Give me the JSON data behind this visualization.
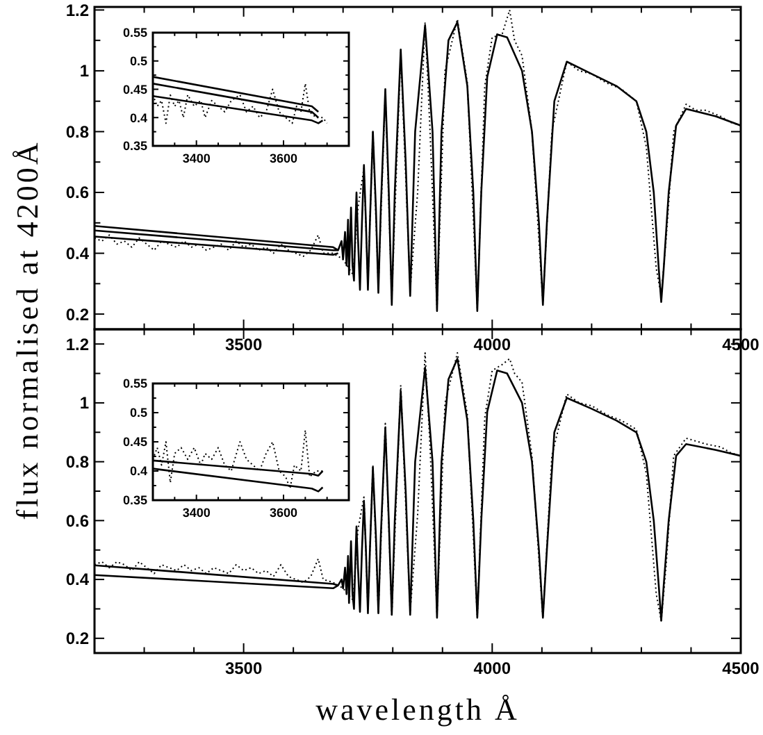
{
  "chart_data": [
    {
      "type": "line",
      "ylabel": "flux normalised at 4200Å",
      "xlim": [
        3200,
        4500
      ],
      "ylim": [
        0.15,
        1.21
      ],
      "xticks": [
        {
          "value": 3300,
          "label": null
        },
        {
          "value": 3400,
          "label": null
        },
        3500,
        {
          "value": 3600,
          "label": null
        },
        {
          "value": 3700,
          "label": null
        },
        {
          "value": 3800,
          "label": null
        },
        {
          "value": 3900,
          "label": null
        },
        4000,
        {
          "value": 4100,
          "label": null
        },
        {
          "value": 4200,
          "label": null
        },
        {
          "value": 4300,
          "label": null
        },
        {
          "value": 4400,
          "label": null
        },
        4500
      ],
      "yticks": [
        0.2,
        {
          "value": 0.3,
          "label": null
        },
        0.4,
        {
          "value": 0.5,
          "label": null
        },
        0.6,
        {
          "value": 0.7,
          "label": null
        },
        0.8,
        {
          "value": 0.9,
          "label": null
        },
        1,
        {
          "value": 1.1,
          "label": null
        },
        1.2
      ],
      "series": [
        {
          "color": "#000000",
          "line_style": "dotted",
          "x": [
            3200,
            3215,
            3230,
            3245,
            3260,
            3275,
            3290,
            3305,
            3320,
            3335,
            3350,
            3365,
            3380,
            3395,
            3410,
            3425,
            3440,
            3455,
            3470,
            3485,
            3500,
            3515,
            3530,
            3545,
            3560,
            3575,
            3590,
            3605,
            3620,
            3635,
            3650,
            3660,
            3680,
            3700,
            3720,
            3730,
            3742,
            3750,
            3760,
            3771,
            3785,
            3798,
            3816,
            3835,
            3850,
            3865,
            3875,
            3889,
            3905,
            3930,
            3950,
            3970,
            3985,
            4000,
            4020,
            4035,
            4045,
            4060,
            4080,
            4102,
            4120,
            4150,
            4175,
            4200,
            4230,
            4260,
            4290,
            4310,
            4330,
            4340,
            4350,
            4365,
            4390,
            4410,
            4430,
            4460,
            4480,
            4500
          ],
          "values": [
            0.45,
            0.44,
            0.46,
            0.43,
            0.44,
            0.42,
            0.45,
            0.43,
            0.41,
            0.44,
            0.43,
            0.42,
            0.44,
            0.42,
            0.43,
            0.41,
            0.42,
            0.43,
            0.41,
            0.44,
            0.42,
            0.43,
            0.41,
            0.42,
            0.4,
            0.43,
            0.41,
            0.4,
            0.39,
            0.41,
            0.46,
            0.4,
            0.4,
            0.38,
            0.33,
            0.55,
            0.68,
            0.3,
            0.8,
            0.29,
            0.93,
            0.25,
            1.06,
            0.28,
            0.6,
            1.16,
            0.8,
            0.22,
            1.0,
            1.17,
            0.96,
            0.22,
            0.95,
            1.11,
            1.12,
            1.2,
            1.1,
            1.05,
            0.8,
            0.24,
            0.8,
            1.03,
            1.0,
            0.99,
            0.96,
            0.94,
            0.9,
            0.75,
            0.35,
            0.26,
            0.45,
            0.8,
            0.89,
            0.87,
            0.87,
            0.85,
            0.83,
            0.82
          ]
        },
        {
          "color": "#000000",
          "line_style": "solid",
          "x": [
            3200,
            3680,
            3690,
            3697,
            3700,
            3704,
            3707,
            3710,
            3712,
            3716,
            3719,
            3722,
            3725,
            3727,
            3730,
            3734,
            3738,
            3742,
            3746,
            3750,
            3754,
            3760,
            3766,
            3771,
            3776,
            3785,
            3792,
            3798,
            3804,
            3816,
            3826,
            3835,
            3845,
            3865,
            3880,
            3889,
            3898,
            3912,
            3930,
            3950,
            3962,
            3970,
            3978,
            3990,
            4010,
            4030,
            4060,
            4080,
            4094,
            4102,
            4110,
            4125,
            4150,
            4200,
            4250,
            4290,
            4310,
            4325,
            4335,
            4340,
            4345,
            4355,
            4370,
            4390,
            4450,
            4500
          ],
          "values": [
            0.49,
            0.42,
            0.41,
            0.44,
            0.38,
            0.47,
            0.36,
            0.51,
            0.33,
            0.55,
            0.36,
            0.31,
            0.5,
            0.6,
            0.45,
            0.28,
            0.5,
            0.69,
            0.5,
            0.28,
            0.5,
            0.8,
            0.55,
            0.27,
            0.55,
            0.94,
            0.6,
            0.23,
            0.6,
            1.07,
            0.7,
            0.26,
            0.8,
            1.15,
            0.8,
            0.21,
            0.8,
            1.1,
            1.16,
            0.95,
            0.6,
            0.21,
            0.6,
            0.98,
            1.12,
            1.11,
            1.0,
            0.8,
            0.5,
            0.23,
            0.5,
            0.9,
            1.03,
            0.99,
            0.95,
            0.9,
            0.8,
            0.6,
            0.35,
            0.24,
            0.35,
            0.6,
            0.82,
            0.875,
            0.85,
            0.82
          ]
        },
        {
          "color": "#000000",
          "line_style": "solid",
          "x": [
            3200,
            3680,
            3690
          ],
          "values": [
            0.475,
            0.41,
            0.41
          ]
        },
        {
          "color": "#000000",
          "line_style": "solid",
          "x": [
            3200,
            3680,
            3690
          ],
          "values": [
            0.455,
            0.395,
            0.4
          ]
        }
      ]
    },
    {
      "type": "line",
      "xlim": [
        3300,
        3750
      ],
      "ylim": [
        0.35,
        0.55
      ],
      "xticks": [
        {
          "value": 3350,
          "label": null
        },
        3400,
        {
          "value": 3450,
          "label": null
        },
        {
          "value": 3500,
          "label": null
        },
        {
          "value": 3550,
          "label": null
        },
        3600,
        {
          "value": 3650,
          "label": null
        },
        {
          "value": 3700,
          "label": null
        }
      ],
      "yticks": [
        0.35,
        {
          "value": 0.375,
          "label": null
        },
        0.4,
        {
          "value": 0.425,
          "label": null
        },
        0.45,
        {
          "value": 0.475,
          "label": null
        },
        0.5,
        {
          "value": 0.525,
          "label": null
        },
        0.55
      ],
      "series": [
        {
          "color": "#000000",
          "line_style": "dotted",
          "x": [
            3300,
            3310,
            3320,
            3330,
            3340,
            3350,
            3360,
            3370,
            3380,
            3395,
            3410,
            3420,
            3435,
            3450,
            3465,
            3480,
            3500,
            3515,
            3530,
            3545,
            3560,
            3575,
            3590,
            3605,
            3620,
            3630,
            3640,
            3650,
            3660,
            3675,
            3690,
            3700
          ],
          "values": [
            0.44,
            0.42,
            0.43,
            0.39,
            0.44,
            0.42,
            0.43,
            0.4,
            0.44,
            0.42,
            0.43,
            0.4,
            0.43,
            0.42,
            0.41,
            0.43,
            0.44,
            0.41,
            0.42,
            0.4,
            0.41,
            0.45,
            0.41,
            0.4,
            0.39,
            0.42,
            0.41,
            0.46,
            0.41,
            0.4,
            0.4,
            0.39
          ]
        },
        {
          "color": "#000000",
          "line_style": "solid",
          "x": [
            3300,
            3665,
            3680
          ],
          "values": [
            0.472,
            0.42,
            0.41
          ]
        },
        {
          "color": "#000000",
          "line_style": "solid",
          "x": [
            3300,
            3665,
            3680
          ],
          "values": [
            0.46,
            0.41,
            0.4
          ]
        },
        {
          "color": "#000000",
          "line_style": "solid",
          "x": [
            3300,
            3665,
            3680,
            3690
          ],
          "values": [
            0.438,
            0.395,
            0.39,
            0.395
          ]
        }
      ]
    },
    {
      "type": "line",
      "xlabel": "wavelength Å",
      "xlim": [
        3200,
        4500
      ],
      "ylim": [
        0.15,
        1.25
      ],
      "xticks": [
        {
          "value": 3300,
          "label": null
        },
        {
          "value": 3400,
          "label": null
        },
        3500,
        {
          "value": 3600,
          "label": null
        },
        {
          "value": 3700,
          "label": null
        },
        {
          "value": 3800,
          "label": null
        },
        {
          "value": 3900,
          "label": null
        },
        4000,
        {
          "value": 4100,
          "label": null
        },
        {
          "value": 4200,
          "label": null
        },
        {
          "value": 4300,
          "label": null
        },
        {
          "value": 4400,
          "label": null
        },
        4500
      ],
      "yticks": [
        0.2,
        {
          "value": 0.3,
          "label": null
        },
        0.4,
        {
          "value": 0.5,
          "label": null
        },
        0.6,
        {
          "value": 0.7,
          "label": null
        },
        0.8,
        {
          "value": 0.9,
          "label": null
        },
        1,
        {
          "value": 1.1,
          "label": null
        },
        1.2
      ],
      "series": [
        {
          "color": "#000000",
          "line_style": "dotted",
          "x": [
            3200,
            3215,
            3230,
            3245,
            3260,
            3275,
            3290,
            3305,
            3320,
            3335,
            3350,
            3365,
            3380,
            3395,
            3410,
            3425,
            3440,
            3455,
            3470,
            3485,
            3500,
            3515,
            3530,
            3545,
            3560,
            3575,
            3590,
            3605,
            3620,
            3635,
            3650,
            3660,
            3680,
            3700,
            3720,
            3730,
            3742,
            3750,
            3760,
            3771,
            3785,
            3798,
            3816,
            3835,
            3850,
            3865,
            3875,
            3889,
            3905,
            3930,
            3950,
            3970,
            3985,
            4000,
            4020,
            4035,
            4045,
            4060,
            4080,
            4102,
            4120,
            4150,
            4175,
            4200,
            4230,
            4260,
            4290,
            4310,
            4330,
            4340,
            4350,
            4365,
            4390,
            4410,
            4430,
            4460,
            4480,
            4500
          ],
          "values": [
            0.45,
            0.46,
            0.44,
            0.46,
            0.45,
            0.43,
            0.46,
            0.44,
            0.42,
            0.45,
            0.44,
            0.43,
            0.45,
            0.43,
            0.44,
            0.42,
            0.44,
            0.43,
            0.42,
            0.45,
            0.43,
            0.44,
            0.42,
            0.43,
            0.41,
            0.45,
            0.41,
            0.4,
            0.39,
            0.41,
            0.47,
            0.4,
            0.39,
            0.37,
            0.33,
            0.57,
            0.68,
            0.3,
            0.79,
            0.29,
            0.93,
            0.28,
            1.06,
            0.29,
            0.62,
            1.17,
            0.85,
            0.28,
            1.0,
            1.17,
            0.96,
            0.27,
            0.95,
            1.11,
            1.13,
            1.15,
            1.1,
            1.07,
            0.82,
            0.27,
            0.82,
            1.03,
            1.0,
            0.99,
            0.96,
            0.94,
            0.91,
            0.76,
            0.35,
            0.26,
            0.45,
            0.82,
            0.88,
            0.87,
            0.86,
            0.85,
            0.83,
            0.82
          ]
        },
        {
          "color": "#000000",
          "line_style": "solid",
          "x": [
            3200,
            3680,
            3690,
            3697,
            3700,
            3704,
            3707,
            3710,
            3712,
            3716,
            3719,
            3722,
            3725,
            3727,
            3730,
            3734,
            3738,
            3742,
            3746,
            3750,
            3754,
            3760,
            3766,
            3771,
            3776,
            3785,
            3792,
            3798,
            3804,
            3816,
            3826,
            3835,
            3845,
            3865,
            3880,
            3889,
            3898,
            3912,
            3930,
            3950,
            3962,
            3970,
            3978,
            3990,
            4010,
            4030,
            4060,
            4080,
            4094,
            4102,
            4110,
            4125,
            4150,
            4200,
            4250,
            4290,
            4310,
            4325,
            4335,
            4340,
            4345,
            4355,
            4370,
            4390,
            4450,
            4500
          ],
          "values": [
            0.448,
            0.385,
            0.38,
            0.4,
            0.37,
            0.44,
            0.35,
            0.48,
            0.32,
            0.53,
            0.35,
            0.3,
            0.48,
            0.58,
            0.44,
            0.29,
            0.5,
            0.667,
            0.5,
            0.285,
            0.5,
            0.78,
            0.55,
            0.285,
            0.55,
            0.915,
            0.6,
            0.28,
            0.6,
            1.04,
            0.7,
            0.28,
            0.8,
            1.12,
            0.8,
            0.27,
            0.8,
            1.08,
            1.15,
            0.94,
            0.6,
            0.27,
            0.6,
            0.97,
            1.11,
            1.1,
            1.0,
            0.8,
            0.5,
            0.27,
            0.5,
            0.9,
            1.017,
            0.98,
            0.94,
            0.9,
            0.8,
            0.6,
            0.38,
            0.26,
            0.38,
            0.6,
            0.82,
            0.86,
            0.84,
            0.82
          ]
        },
        {
          "color": "#000000",
          "line_style": "solid",
          "x": [
            3200,
            3680,
            3690
          ],
          "values": [
            0.415,
            0.37,
            0.38
          ]
        }
      ]
    },
    {
      "type": "line",
      "xlim": [
        3300,
        3750
      ],
      "ylim": [
        0.35,
        0.55
      ],
      "xticks": [
        {
          "value": 3350,
          "label": null
        },
        3400,
        {
          "value": 3450,
          "label": null
        },
        {
          "value": 3500,
          "label": null
        },
        {
          "value": 3550,
          "label": null
        },
        3600,
        {
          "value": 3650,
          "label": null
        },
        {
          "value": 3700,
          "label": null
        }
      ],
      "yticks": [
        0.35,
        {
          "value": 0.375,
          "label": null
        },
        0.4,
        {
          "value": 0.425,
          "label": null
        },
        0.45,
        {
          "value": 0.475,
          "label": null
        },
        0.5,
        {
          "value": 0.525,
          "label": null
        },
        0.55
      ],
      "series": [
        {
          "color": "#000000",
          "line_style": "dotted",
          "x": [
            3300,
            3310,
            3320,
            3330,
            3340,
            3350,
            3365,
            3380,
            3395,
            3410,
            3420,
            3435,
            3450,
            3465,
            3480,
            3500,
            3515,
            3530,
            3545,
            3560,
            3575,
            3590,
            3605,
            3615,
            3625,
            3640,
            3650,
            3660,
            3675,
            3690
          ],
          "values": [
            0.42,
            0.44,
            0.41,
            0.45,
            0.38,
            0.43,
            0.44,
            0.42,
            0.44,
            0.41,
            0.43,
            0.42,
            0.44,
            0.41,
            0.4,
            0.45,
            0.42,
            0.41,
            0.4,
            0.43,
            0.45,
            0.4,
            0.39,
            0.37,
            0.41,
            0.4,
            0.47,
            0.39,
            0.4,
            0.4
          ]
        },
        {
          "color": "#000000",
          "line_style": "solid",
          "x": [
            3300,
            3665,
            3680,
            3690
          ],
          "values": [
            0.418,
            0.395,
            0.392,
            0.4
          ]
        },
        {
          "color": "#000000",
          "line_style": "solid",
          "x": [
            3300,
            3665,
            3680,
            3690
          ],
          "values": [
            0.404,
            0.37,
            0.365,
            0.372
          ]
        }
      ]
    }
  ]
}
